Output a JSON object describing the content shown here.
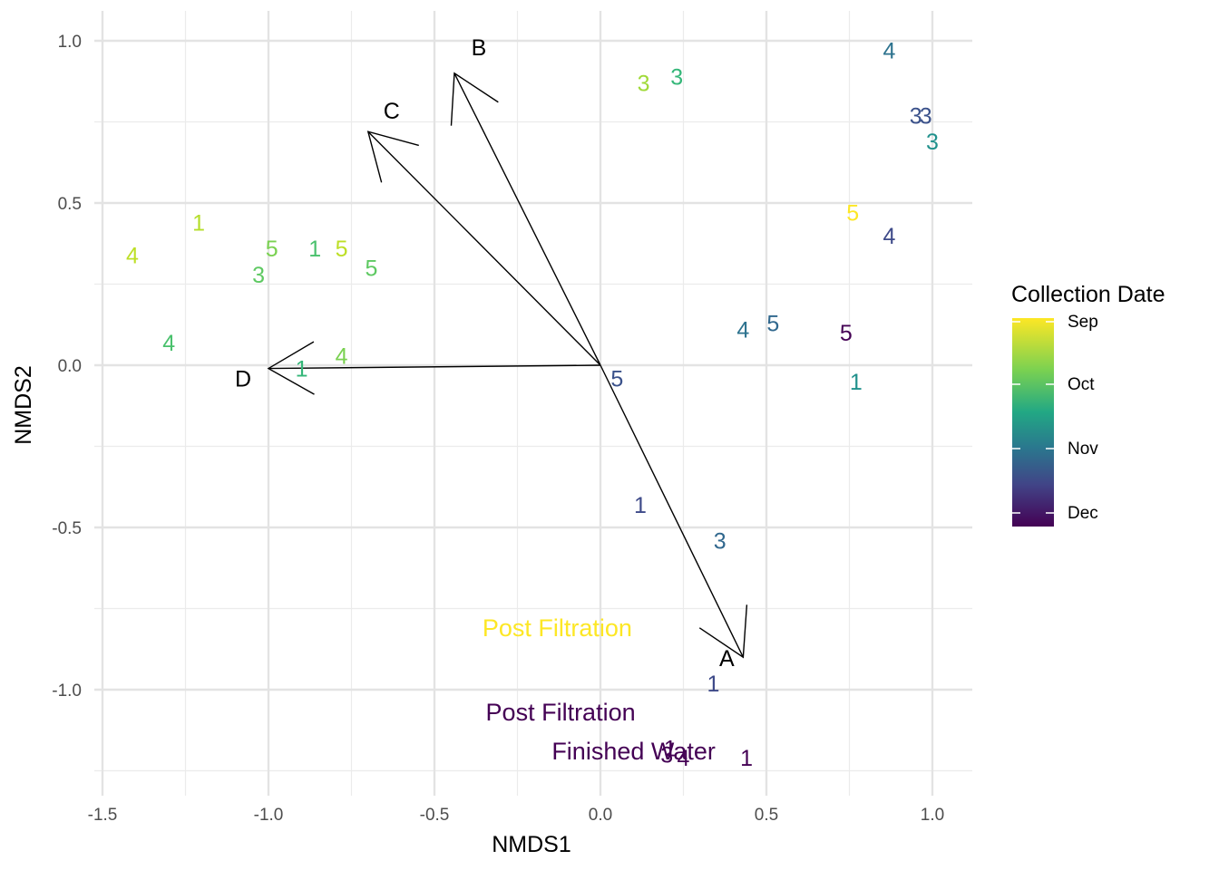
{
  "chart_data": {
    "type": "scatter",
    "xlabel": "NMDS1",
    "ylabel": "NMDS2",
    "xlim": [
      -1.52,
      1.12
    ],
    "ylim": [
      -1.32,
      1.1
    ],
    "x_ticks": [
      {
        "value": -1.5,
        "label": "-1.5"
      },
      {
        "value": -1.0,
        "label": "-1.0"
      },
      {
        "value": -0.5,
        "label": "-0.5"
      },
      {
        "value": 0.0,
        "label": "0.0"
      },
      {
        "value": 0.5,
        "label": "0.5"
      },
      {
        "value": 1.0,
        "label": "1.0"
      }
    ],
    "y_ticks": [
      {
        "value": -1.0,
        "label": "-1.0"
      },
      {
        "value": -0.5,
        "label": "-0.5"
      },
      {
        "value": 0.0,
        "label": "0.0"
      },
      {
        "value": 0.5,
        "label": "0.5"
      },
      {
        "value": 1.0,
        "label": "1.0"
      }
    ],
    "grid": true,
    "points": [
      {
        "x": 0.87,
        "y": 0.97,
        "label": "4",
        "color": "#2c728e"
      },
      {
        "x": 0.95,
        "y": 0.77,
        "label": "3",
        "color": "#3b528b"
      },
      {
        "x": 0.98,
        "y": 0.77,
        "label": "3",
        "color": "#3b528b"
      },
      {
        "x": 1.0,
        "y": 0.69,
        "label": "3",
        "color": "#21918c"
      },
      {
        "x": 0.13,
        "y": 0.87,
        "label": "3",
        "color": "#a0da39"
      },
      {
        "x": 0.23,
        "y": 0.89,
        "label": "3",
        "color": "#35b779"
      },
      {
        "x": 0.76,
        "y": 0.47,
        "label": "5",
        "color": "#fde725"
      },
      {
        "x": 0.87,
        "y": 0.4,
        "label": "4",
        "color": "#3e4a89"
      },
      {
        "x": 0.43,
        "y": 0.11,
        "label": "4",
        "color": "#2c728e"
      },
      {
        "x": 0.52,
        "y": 0.13,
        "label": "5",
        "color": "#31688e"
      },
      {
        "x": 0.74,
        "y": 0.1,
        "label": "5",
        "color": "#440154"
      },
      {
        "x": 0.77,
        "y": -0.05,
        "label": "1",
        "color": "#21918c"
      },
      {
        "x": 0.05,
        "y": -0.04,
        "label": "5",
        "color": "#3b528b"
      },
      {
        "x": -1.21,
        "y": 0.44,
        "label": "1",
        "color": "#b5de2b"
      },
      {
        "x": -1.41,
        "y": 0.34,
        "label": "4",
        "color": "#bddf26"
      },
      {
        "x": -0.99,
        "y": 0.36,
        "label": "5",
        "color": "#7ad151"
      },
      {
        "x": -1.03,
        "y": 0.28,
        "label": "3",
        "color": "#5ec962"
      },
      {
        "x": -0.86,
        "y": 0.36,
        "label": "1",
        "color": "#4ac16d"
      },
      {
        "x": -0.78,
        "y": 0.36,
        "label": "5",
        "color": "#bddf26"
      },
      {
        "x": -0.69,
        "y": 0.3,
        "label": "5",
        "color": "#5ec962"
      },
      {
        "x": -1.3,
        "y": 0.07,
        "label": "4",
        "color": "#4ac16d"
      },
      {
        "x": -0.78,
        "y": 0.03,
        "label": "4",
        "color": "#7ad151"
      },
      {
        "x": -0.9,
        "y": -0.01,
        "label": "1",
        "color": "#35b779"
      },
      {
        "x": 0.12,
        "y": -0.43,
        "label": "1",
        "color": "#3e4a89"
      },
      {
        "x": 0.36,
        "y": -0.54,
        "label": "3",
        "color": "#31688e"
      },
      {
        "x": 0.34,
        "y": -0.98,
        "label": "1",
        "color": "#3e4a89"
      },
      {
        "x": 0.2,
        "y": -1.2,
        "label": "3",
        "color": "#440154"
      },
      {
        "x": 0.25,
        "y": -1.21,
        "label": "4",
        "color": "#440154"
      },
      {
        "x": 0.44,
        "y": -1.21,
        "label": "1",
        "color": "#440154"
      },
      {
        "x": 0.21,
        "y": -1.18,
        "label": "1",
        "color": "#440154"
      }
    ],
    "annotations": [
      {
        "x": -0.13,
        "y": -0.81,
        "text": "Post Filtration",
        "color": "#fde725"
      },
      {
        "x": -0.12,
        "y": -1.07,
        "text": "Post Filtration",
        "color": "#440154"
      },
      {
        "x": 0.1,
        "y": -1.19,
        "text": "Finished Water",
        "color": "#440154"
      }
    ],
    "vectors": [
      {
        "name": "A",
        "x": 0.43,
        "y": -0.9
      },
      {
        "name": "B",
        "x": -0.44,
        "y": 0.9
      },
      {
        "name": "C",
        "x": -0.7,
        "y": 0.72
      },
      {
        "name": "D",
        "x": -1.0,
        "y": -0.01
      }
    ],
    "legend": {
      "title": "Collection Date",
      "placement": "right",
      "type": "colorbar",
      "labels": [
        "Sep",
        "Oct",
        "Nov",
        "Dec"
      ],
      "colors": [
        "#fde725",
        "#35b779",
        "#31688e",
        "#440154"
      ]
    }
  }
}
